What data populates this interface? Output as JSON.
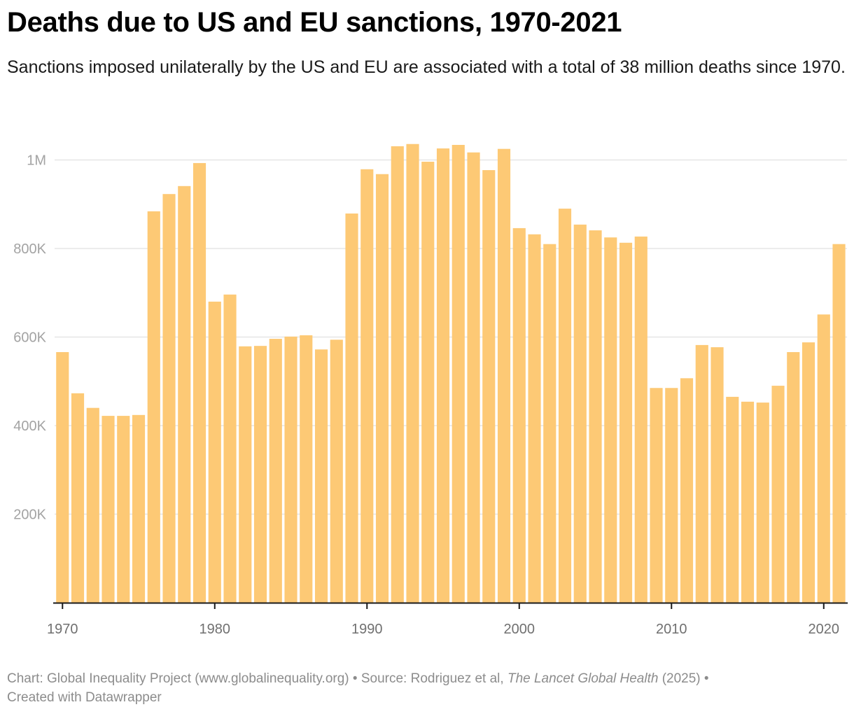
{
  "header": {
    "title": "Deaths due to US and EU sanctions, 1970-2021",
    "subtitle": "Sanctions imposed unilaterally by the US and EU are associated with a total of 38 million deaths since 1970."
  },
  "footer": {
    "chart_credit": "Chart: Global Inequality Project (www.globalinequality.org)",
    "separator": " • ",
    "source_prefix": "Source: Rodriguez et al, ",
    "source_journal": "The Lancet Global Health",
    "source_year": " (2025)",
    "created_with": "Created with Datawrapper"
  },
  "colors": {
    "bar": "#fdc975",
    "gridline": "#e6e6e6",
    "axis": "#1a1a1a"
  },
  "chart_data": {
    "type": "bar",
    "title": "Deaths due to US and EU sanctions, 1970-2021",
    "xlabel": "",
    "ylabel": "",
    "ylim": [
      0,
      1060000
    ],
    "grid": true,
    "y_ticks": [
      200000,
      400000,
      600000,
      800000,
      1000000
    ],
    "y_tick_labels": [
      "200K",
      "400K",
      "600K",
      "800K",
      "1M"
    ],
    "x_ticks": [
      1970,
      1980,
      1990,
      2000,
      2010,
      2020
    ],
    "x_tick_labels": [
      "1970",
      "1980",
      "1990",
      "2000",
      "2010",
      "2020"
    ],
    "categories": [
      1970,
      1971,
      1972,
      1973,
      1974,
      1975,
      1976,
      1977,
      1978,
      1979,
      1980,
      1981,
      1982,
      1983,
      1984,
      1985,
      1986,
      1987,
      1988,
      1989,
      1990,
      1991,
      1992,
      1993,
      1994,
      1995,
      1996,
      1997,
      1998,
      1999,
      2000,
      2001,
      2002,
      2003,
      2004,
      2005,
      2006,
      2007,
      2008,
      2009,
      2010,
      2011,
      2012,
      2013,
      2014,
      2015,
      2016,
      2017,
      2018,
      2019,
      2020,
      2021
    ],
    "values": [
      566000,
      473000,
      440000,
      422000,
      422000,
      424000,
      884000,
      923000,
      941000,
      993000,
      680000,
      696000,
      579000,
      580000,
      596000,
      601000,
      604000,
      572000,
      594000,
      879000,
      979000,
      968000,
      1031000,
      1036000,
      996000,
      1026000,
      1034000,
      1017000,
      977000,
      1025000,
      846000,
      832000,
      810000,
      890000,
      854000,
      841000,
      825000,
      813000,
      827000,
      485000,
      485000,
      507000,
      582000,
      577000,
      465000,
      454000,
      452000,
      490000,
      566000,
      588000,
      651000,
      810000
    ]
  }
}
